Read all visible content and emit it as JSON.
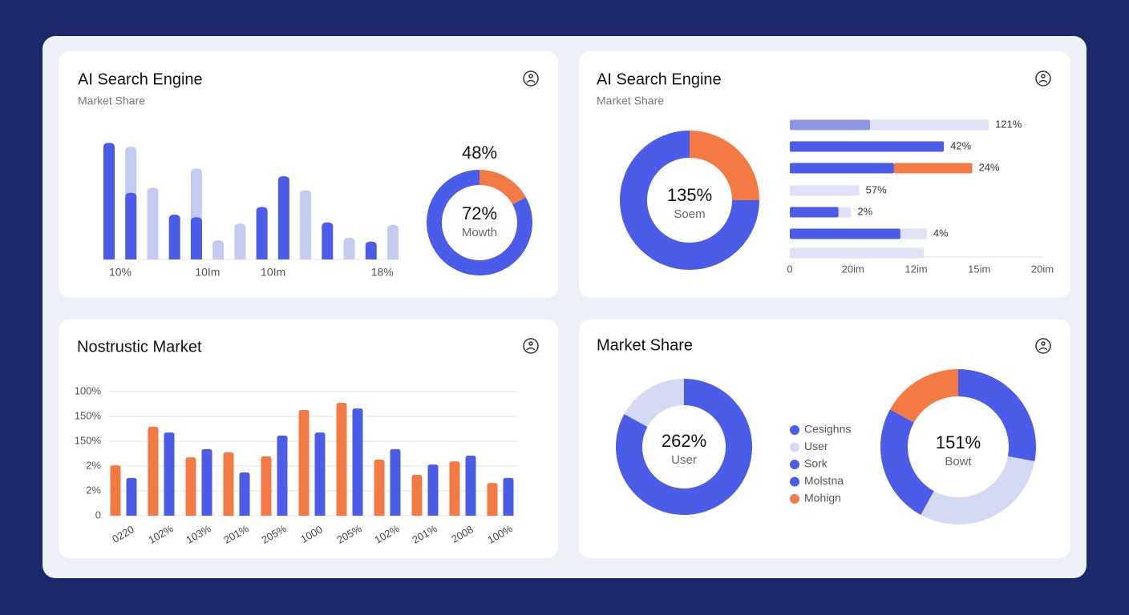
{
  "chart_data": [
    {
      "type": "bar",
      "title": "AI Search Engine",
      "subtitle": "Market Share",
      "categories": [
        "10%",
        null,
        null,
        null,
        "10Im",
        null,
        null,
        "10Im",
        null,
        null,
        null,
        null,
        "18%",
        null
      ],
      "series": [
        {
          "color": "#c5caf0",
          "values": [
            null,
            88,
            56,
            null,
            71,
            15,
            28,
            null,
            null,
            54,
            null,
            17,
            null,
            27
          ]
        },
        {
          "color": "#4a5ce8",
          "values": [
            91,
            52,
            null,
            35,
            33,
            null,
            null,
            41,
            65,
            null,
            29,
            null,
            14,
            null
          ]
        }
      ]
    },
    {
      "type": "donut",
      "label_top": "48%",
      "center_value": "72%",
      "center_label": "Mowth",
      "values": [
        17,
        83
      ],
      "colors": [
        "#f47a45",
        "#4a5ce8"
      ]
    },
    {
      "type": "donut",
      "title": "AI Search Engine",
      "subtitle": "Market Share",
      "center_value": "135%",
      "center_label": "Soem",
      "values": [
        25,
        75
      ],
      "colors": [
        "#f47a45",
        "#4a5ce8"
      ]
    },
    {
      "type": "hbar",
      "bar_labels": [
        "121%",
        "42%",
        "24%",
        "57%",
        "2%",
        "4%",
        null
      ],
      "xlim": [
        0,
        4
      ],
      "xticks": [
        0,
        {
          "value": 1,
          "label": "20im"
        },
        {
          "value": 2,
          "label": "12im"
        },
        {
          "value": 3,
          "label": "15im"
        },
        {
          "value": 4,
          "label": "20im"
        }
      ],
      "series": [
        {
          "color": "#dfe2f6",
          "values": [
            3.15,
            null,
            null,
            1.1,
            0.97,
            2.17,
            2.12
          ]
        },
        {
          "color": "#8d97e6",
          "values": [
            1.27,
            null,
            null,
            null,
            null,
            null,
            null
          ]
        },
        {
          "color": "#4a5ce8",
          "values": [
            null,
            2.44,
            1.65,
            null,
            0.77,
            1.75,
            null
          ]
        },
        {
          "color": "#f47a45",
          "stacked": true,
          "values": [
            null,
            null,
            1.24,
            null,
            null,
            null,
            null
          ]
        }
      ]
    },
    {
      "type": "grouped_bar",
      "title": "Nostrustic Market",
      "categories": [
        "0220",
        "102%",
        "103%",
        "201%",
        "205%",
        "1000",
        "205%",
        "102%",
        "201%",
        "2008",
        "100%"
      ],
      "ylim": [
        0,
        5
      ],
      "yticks": [
        0,
        {
          "value": 1,
          "label": "2%"
        },
        {
          "value": 2,
          "label": "2%"
        },
        {
          "value": 3,
          "label": "150%"
        },
        {
          "value": 4,
          "label": "150%"
        },
        {
          "value": 5,
          "label": "100%"
        }
      ],
      "grid": true,
      "series": [
        {
          "color": "#f47a45",
          "values": [
            2.03,
            3.58,
            2.35,
            2.55,
            2.39,
            4.26,
            4.55,
            2.26,
            1.65,
            2.19,
            1.32
          ]
        },
        {
          "color": "#4a5ce8",
          "values": [
            1.52,
            3.35,
            2.68,
            1.74,
            3.23,
            3.35,
            4.32,
            2.68,
            2.06,
            2.42,
            1.52
          ]
        }
      ]
    },
    {
      "type": "donut",
      "title": "Market Share",
      "center_value": "262%",
      "center_label": "User",
      "values": [
        83,
        17
      ],
      "colors": [
        "#4a5ce8",
        "#d5d9f3"
      ],
      "legend": [
        {
          "name": "Cesighns",
          "color": "#4a5ce8"
        },
        {
          "name": "User",
          "color": "#d5d9f3"
        },
        {
          "name": "Sork",
          "color": "#4a5ce8"
        },
        {
          "name": "Molstna",
          "color": "#4a5ce8"
        },
        {
          "name": "Mohign",
          "color": "#f47a45"
        }
      ]
    },
    {
      "type": "donut",
      "center_value": "151%",
      "center_label": "Bowt",
      "values": [
        28,
        30,
        25,
        17
      ],
      "colors": [
        "#4a5ce8",
        "#d5d9f3",
        "#4a5ce8",
        "#f47a45"
      ]
    }
  ]
}
